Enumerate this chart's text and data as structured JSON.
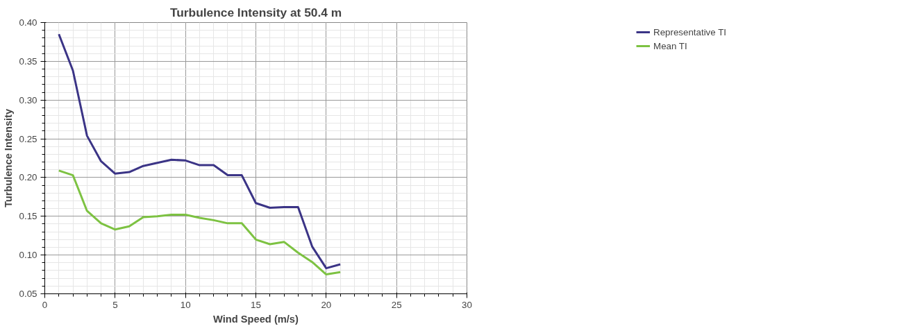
{
  "chart_data": {
    "type": "line",
    "title": "Turbulence Intensity at 50.4 m",
    "xlabel": "Wind Speed (m/s)",
    "ylabel": "Turbulence Intensity",
    "x": [
      1,
      2,
      3,
      4,
      5,
      6,
      7,
      8,
      9,
      10,
      11,
      12,
      13,
      14,
      15,
      16,
      17,
      18,
      19,
      20,
      21
    ],
    "series": [
      {
        "name": "Representative TI",
        "color": "#3b3486",
        "values": [
          0.385,
          0.338,
          0.254,
          0.221,
          0.205,
          0.207,
          0.215,
          0.219,
          0.223,
          0.222,
          0.216,
          0.216,
          0.203,
          0.203,
          0.167,
          0.161,
          0.162,
          0.162,
          0.111,
          0.083,
          0.088
        ]
      },
      {
        "name": "Mean TI",
        "color": "#7dc242",
        "values": [
          0.209,
          0.203,
          0.157,
          0.141,
          0.133,
          0.137,
          0.149,
          0.15,
          0.152,
          0.152,
          0.148,
          0.145,
          0.141,
          0.141,
          0.12,
          0.114,
          0.117,
          0.103,
          0.091,
          0.075,
          0.078
        ]
      }
    ],
    "xlim": [
      0,
      30
    ],
    "ylim": [
      0.05,
      0.4
    ],
    "xticks": [
      0,
      5,
      10,
      15,
      20,
      25,
      30
    ],
    "yticks": [
      {
        "value": 0.05,
        "label": "0.05"
      },
      {
        "value": 0.1,
        "label": "0.10"
      },
      {
        "value": 0.15,
        "label": "0.15"
      },
      {
        "value": 0.2,
        "label": "0.20"
      },
      {
        "value": 0.25,
        "label": "0.25"
      },
      {
        "value": 0.3,
        "label": "0.30"
      },
      {
        "value": 0.35,
        "label": "0.35"
      },
      {
        "value": 0.4,
        "label": "0.40"
      }
    ],
    "grid": true,
    "legend": "top right",
    "marker": "none",
    "line_style": "solid"
  }
}
